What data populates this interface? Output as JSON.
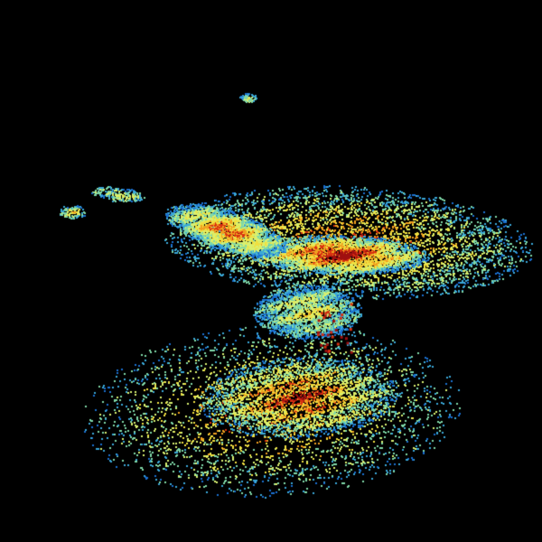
{
  "image": {
    "type": "weather-radar-reflectivity",
    "background": "#000000",
    "palette": {
      "weak": "#1a6fd0",
      "light": "#3aa8d8",
      "moderate_low": "#7fd8a8",
      "moderate": "#d8f070",
      "strong": "#f0e040",
      "heavy": "#f0a020",
      "intense": "#d83010",
      "extreme": "#a01010"
    },
    "radar_site_marker_color": "#000000"
  }
}
